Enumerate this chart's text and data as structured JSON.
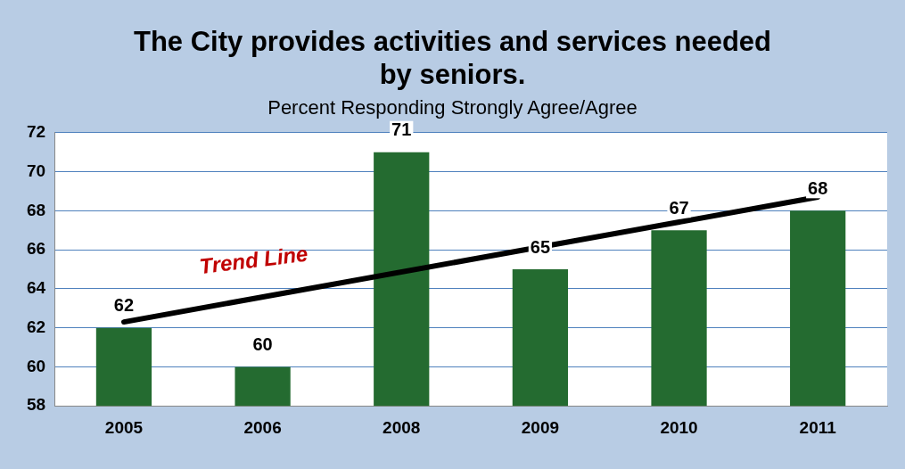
{
  "chart_data": {
    "type": "bar",
    "title": "The City provides activities and services needed by seniors.",
    "subtitle": "Percent Responding Strongly Agree/Agree",
    "categories": [
      "2005",
      "2006",
      "2008",
      "2009",
      "2010",
      "2011"
    ],
    "series": [
      {
        "color": "#246b30",
        "values": [
          62,
          60,
          71,
          65,
          67,
          68
        ],
        "value_labels": [
          "62",
          "60",
          "71",
          "65",
          "67",
          "68"
        ]
      },
      {
        "type": "line",
        "color": "#000000",
        "values": [
          62.3,
          null,
          null,
          null,
          null,
          68.7
        ]
      }
    ],
    "ylim": [
      58,
      72
    ],
    "yticks": [
      58,
      60,
      62,
      64,
      66,
      68,
      70,
      72
    ],
    "grid": "y",
    "legend": false,
    "annotations": [
      "Trend Line"
    ]
  }
}
